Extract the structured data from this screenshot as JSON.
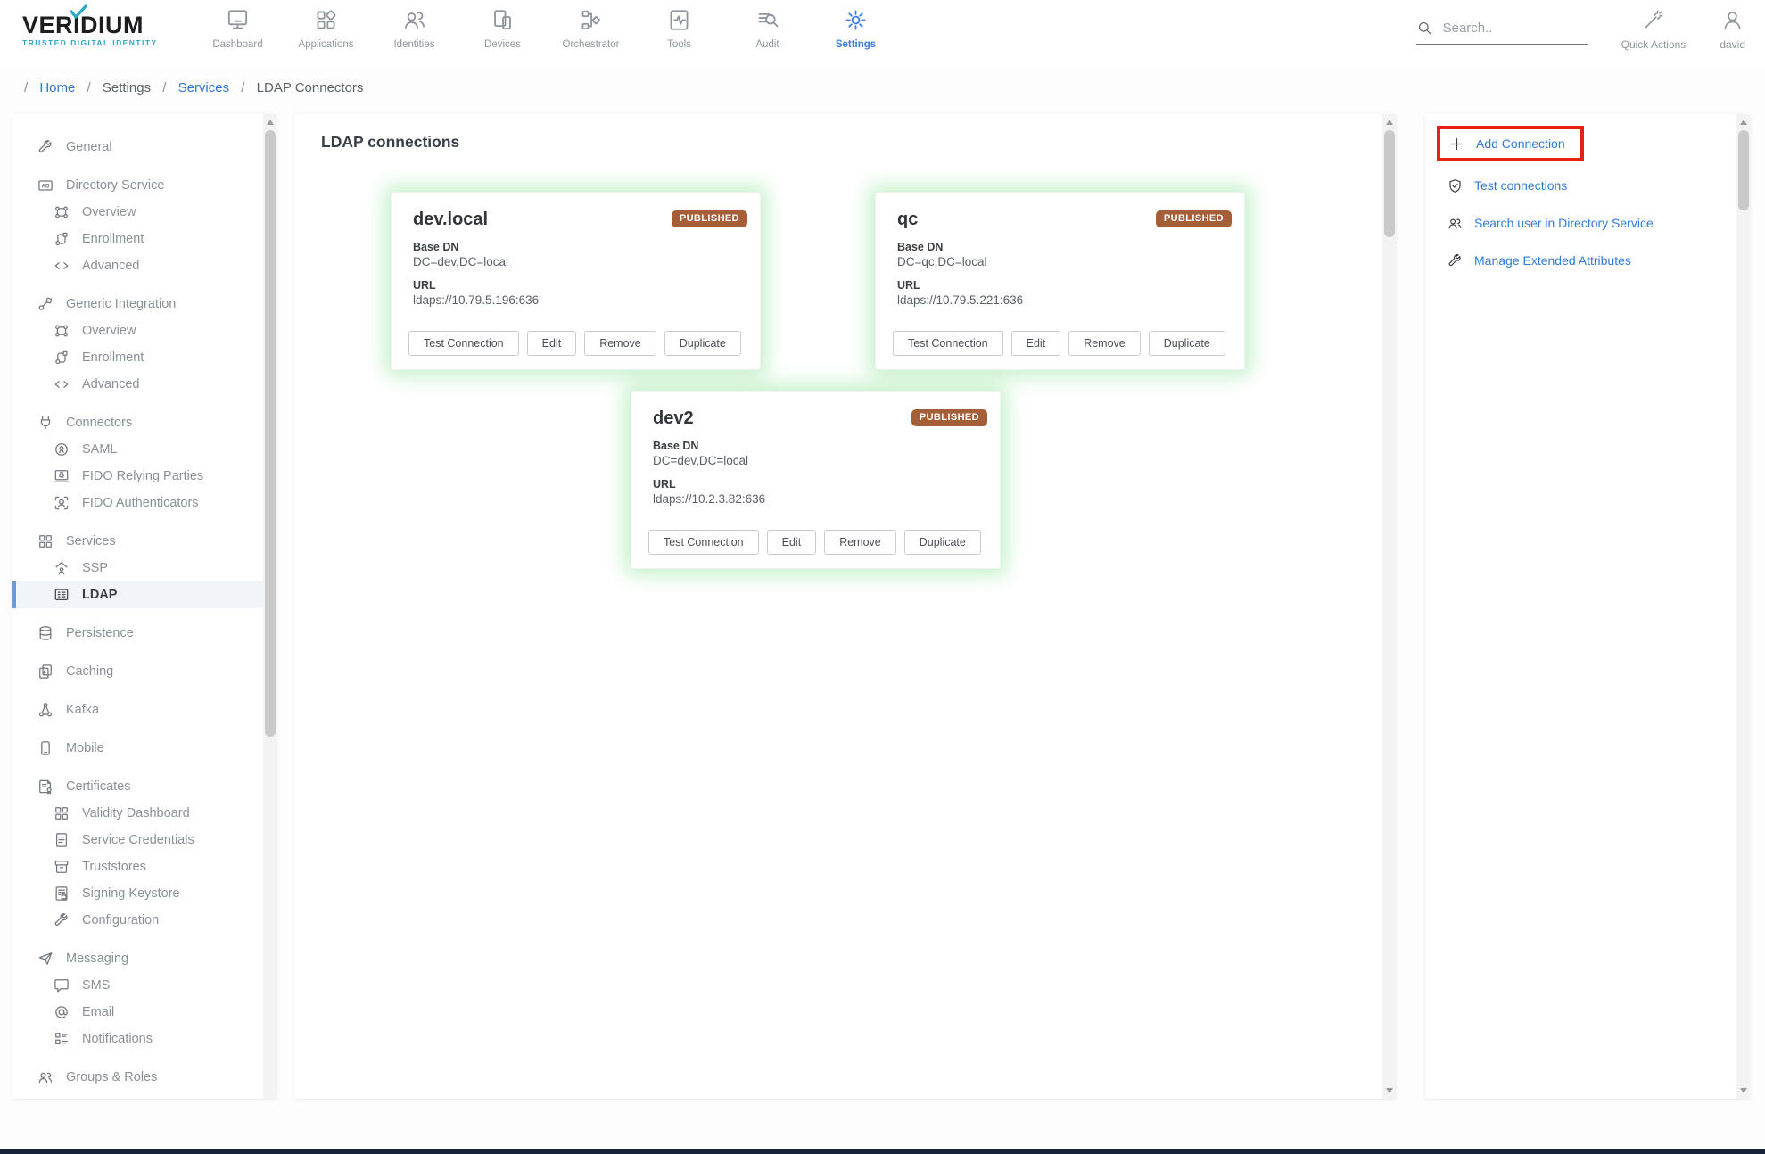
{
  "brand": {
    "name": "VERIDIUM",
    "tagline": "TRUSTED DIGITAL IDENTITY",
    "check_icon": "check-icon"
  },
  "header": {
    "nav": [
      {
        "label": "Dashboard",
        "icon": "monitor-icon",
        "active": false
      },
      {
        "label": "Applications",
        "icon": "apps-grid-icon",
        "active": false
      },
      {
        "label": "Identities",
        "icon": "identities-icon",
        "active": false
      },
      {
        "label": "Devices",
        "icon": "devices-icon",
        "active": false
      },
      {
        "label": "Orchestrator",
        "icon": "orchestrator-icon",
        "active": false
      },
      {
        "label": "Tools",
        "icon": "tools-icon",
        "active": false
      },
      {
        "label": "Audit",
        "icon": "audit-icon",
        "active": false
      },
      {
        "label": "Settings",
        "icon": "gear-icon",
        "active": true
      }
    ],
    "search_icon": "search-icon",
    "search_placeholder": "Search..",
    "quick_actions": {
      "label": "Quick Actions",
      "icon": "wand-icon"
    },
    "user": {
      "label": "david",
      "icon": "user-icon"
    }
  },
  "breadcrumb": {
    "separator": "/",
    "items": [
      {
        "label": "Home",
        "link": true
      },
      {
        "label": "Settings",
        "link": false
      },
      {
        "label": "Services",
        "link": true
      },
      {
        "label": "LDAP Connectors",
        "link": false
      }
    ]
  },
  "sidebar": {
    "items": [
      {
        "label": "General",
        "icon": "wrench-icon",
        "sub": false,
        "selected": false
      },
      {
        "label": "Directory Service",
        "icon": "ad-badge-icon",
        "sub": false,
        "selected": false
      },
      {
        "label": "Overview",
        "icon": "nodes-icon",
        "sub": true,
        "selected": false
      },
      {
        "label": "Enrollment",
        "icon": "enrollment-icon",
        "sub": true,
        "selected": false
      },
      {
        "label": "Advanced",
        "icon": "code-icon",
        "sub": true,
        "selected": false
      },
      {
        "label": "Generic Integration",
        "icon": "integration-icon",
        "sub": false,
        "selected": false
      },
      {
        "label": "Overview",
        "icon": "nodes-icon",
        "sub": true,
        "selected": false
      },
      {
        "label": "Enrollment",
        "icon": "enrollment-icon",
        "sub": true,
        "selected": false
      },
      {
        "label": "Advanced",
        "icon": "code-icon",
        "sub": true,
        "selected": false
      },
      {
        "label": "Connectors",
        "icon": "plug-icon",
        "sub": false,
        "selected": false
      },
      {
        "label": "SAML",
        "icon": "saml-icon",
        "sub": true,
        "selected": false
      },
      {
        "label": "FIDO Relying Parties",
        "icon": "laptop-lock-icon",
        "sub": true,
        "selected": false
      },
      {
        "label": "FIDO Authenticators",
        "icon": "face-scan-icon",
        "sub": true,
        "selected": false
      },
      {
        "label": "Services",
        "icon": "services-grid-icon",
        "sub": false,
        "selected": false
      },
      {
        "label": "SSP",
        "icon": "ssp-icon",
        "sub": true,
        "selected": false
      },
      {
        "label": "LDAP",
        "icon": "address-card-icon",
        "sub": true,
        "selected": true
      },
      {
        "label": "Persistence",
        "icon": "database-icon",
        "sub": false,
        "selected": false
      },
      {
        "label": "Caching",
        "icon": "caching-icon",
        "sub": false,
        "selected": false
      },
      {
        "label": "Kafka",
        "icon": "kafka-icon",
        "sub": false,
        "selected": false
      },
      {
        "label": "Mobile",
        "icon": "mobile-icon",
        "sub": false,
        "selected": false
      },
      {
        "label": "Certificates",
        "icon": "certificate-icon",
        "sub": false,
        "selected": false
      },
      {
        "label": "Validity Dashboard",
        "icon": "services-grid-icon",
        "sub": true,
        "selected": false
      },
      {
        "label": "Service Credentials",
        "icon": "doc-lines-icon",
        "sub": true,
        "selected": false
      },
      {
        "label": "Truststores",
        "icon": "archive-icon",
        "sub": true,
        "selected": false
      },
      {
        "label": "Signing Keystore",
        "icon": "keystore-icon",
        "sub": true,
        "selected": false
      },
      {
        "label": "Configuration",
        "icon": "wrench-icon",
        "sub": true,
        "selected": false
      },
      {
        "label": "Messaging",
        "icon": "send-icon",
        "sub": false,
        "selected": false
      },
      {
        "label": "SMS",
        "icon": "sms-icon",
        "sub": true,
        "selected": false
      },
      {
        "label": "Email",
        "icon": "at-icon",
        "sub": true,
        "selected": false
      },
      {
        "label": "Notifications",
        "icon": "notifications-icon",
        "sub": true,
        "selected": false
      },
      {
        "label": "Groups & Roles",
        "icon": "users-icon",
        "sub": false,
        "selected": false
      }
    ]
  },
  "main": {
    "title": "LDAP connections",
    "cards": [
      {
        "name": "dev.local",
        "status": "PUBLISHED",
        "base_dn_label": "Base DN",
        "base_dn": "DC=dev,DC=local",
        "url_label": "URL",
        "url": "ldaps://10.79.5.196:636",
        "actions": [
          "Test Connection",
          "Edit",
          "Remove",
          "Duplicate"
        ]
      },
      {
        "name": "qc",
        "status": "PUBLISHED",
        "base_dn_label": "Base DN",
        "base_dn": "DC=qc,DC=local",
        "url_label": "URL",
        "url": "ldaps://10.79.5.221:636",
        "actions": [
          "Test Connection",
          "Edit",
          "Remove",
          "Duplicate"
        ]
      },
      {
        "name": "dev2",
        "status": "PUBLISHED",
        "base_dn_label": "Base DN",
        "base_dn": "DC=dev,DC=local",
        "url_label": "URL",
        "url": "ldaps://10.2.3.82:636",
        "actions": [
          "Test Connection",
          "Edit",
          "Remove",
          "Duplicate"
        ]
      }
    ]
  },
  "actions_panel": {
    "items": [
      {
        "label": "Add Connection",
        "icon": "plus-icon",
        "highlighted": true
      },
      {
        "label": "Test connections",
        "icon": "shield-check-icon",
        "highlighted": false
      },
      {
        "label": "Search user in Directory Service",
        "icon": "users-icon",
        "highlighted": false
      },
      {
        "label": "Manage Extended Attributes",
        "icon": "wrench-icon",
        "highlighted": false
      }
    ]
  },
  "colors": {
    "accent_blue": "#3b7de0",
    "link_blue": "#2f7cd6",
    "badge_brown": "#a55f38",
    "glow_green": "rgba(116,221,128,0.42)",
    "highlight_red": "#e62117",
    "brand_teal": "#2aa7c9",
    "footer_navy": "#16213a"
  }
}
